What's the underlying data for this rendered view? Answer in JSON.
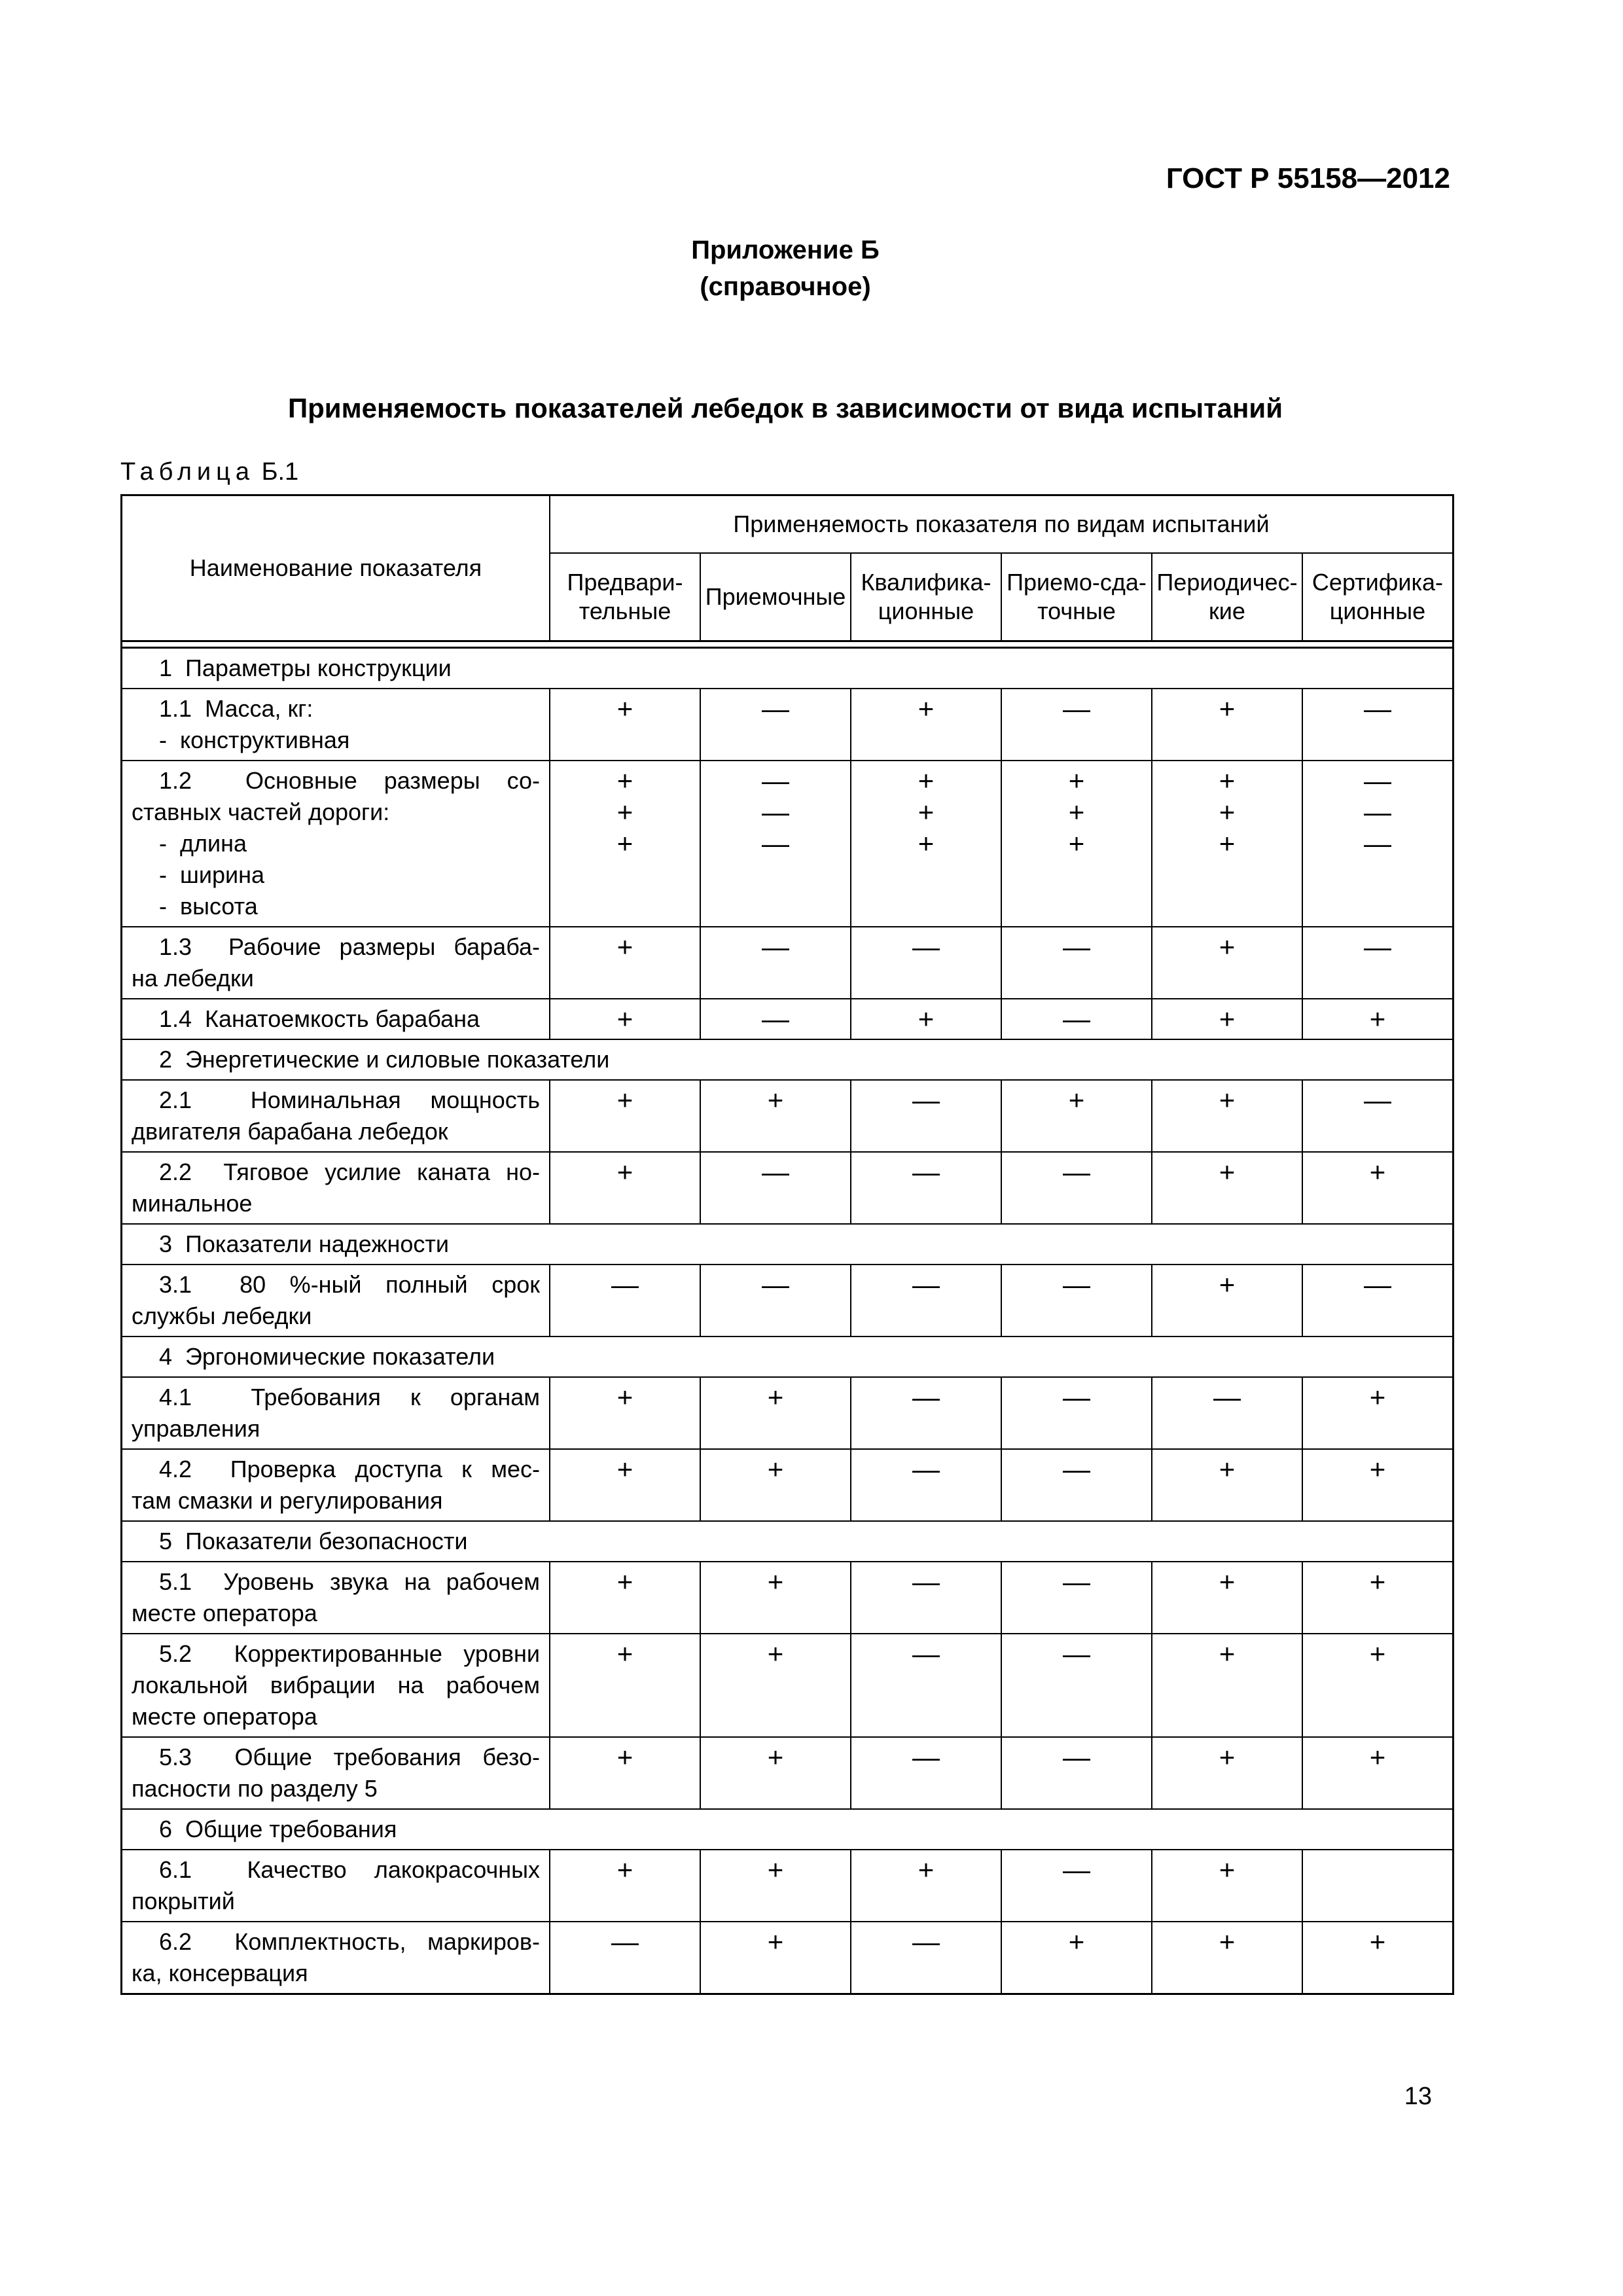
{
  "page": {
    "doc_code": "ГОСТ Р 55158—2012",
    "annex_title": "Приложение Б",
    "annex_subtitle": "(справочное)",
    "main_title": "Применяемость показателей лебедок в зависимости от вида испытаний",
    "table_caption_word": "Таблица",
    "table_caption_number": "Б.1",
    "page_number": "13"
  },
  "table": {
    "name_column_header": "Наименование показателя",
    "span_header": "Применяемость показателя по видам испытаний",
    "test_type_columns": [
      "Предвари-\nтельные",
      "Приемочные",
      "Квалифика-\nционные",
      "Приемо-сда-\nточные",
      "Периодичес-\nкие",
      "Сертифика-\nционные"
    ],
    "mark_yes": "+",
    "mark_no": "—",
    "rows": [
      {
        "type": "section",
        "text": "1  Параметры конструкции"
      },
      {
        "type": "data",
        "lines": [
          {
            "text": "1.1  Масса, кг:"
          },
          {
            "text": "-  конструктивная",
            "marks": [
              "+",
              "—",
              "+",
              "—",
              "+",
              "—"
            ]
          }
        ]
      },
      {
        "type": "data",
        "lines": [
          {
            "text": "1.2  Основные размеры со-"
          },
          {
            "text": "ставных частей дороги:"
          },
          {
            "text": "-  длина",
            "marks": [
              "+",
              "—",
              "+",
              "+",
              "+",
              "—"
            ]
          },
          {
            "text": "-  ширина",
            "marks": [
              "+",
              "—",
              "+",
              "+",
              "+",
              "—"
            ]
          },
          {
            "text": "-  высота",
            "marks": [
              "+",
              "—",
              "+",
              "+",
              "+",
              "—"
            ]
          }
        ]
      },
      {
        "type": "data",
        "lines": [
          {
            "text": "1.3  Рабочие размеры бараба-",
            "marks": [
              "+",
              "—",
              "—",
              "—",
              "+",
              "—"
            ]
          },
          {
            "text": "на лебедки"
          }
        ]
      },
      {
        "type": "data",
        "lines": [
          {
            "text": "1.4  Канатоемкость барабана",
            "marks": [
              "+",
              "—",
              "+",
              "—",
              "+",
              "+"
            ]
          }
        ]
      },
      {
        "type": "section",
        "text": "2  Энергетические и силовые показатели"
      },
      {
        "type": "data",
        "lines": [
          {
            "text": "2.1  Номинальная мощность",
            "marks": [
              "+",
              "+",
              "—",
              "+",
              "+",
              "—"
            ]
          },
          {
            "text": "двигателя барабана лебедок"
          }
        ]
      },
      {
        "type": "data",
        "lines": [
          {
            "text": "2.2  Тяговое усилие каната но-",
            "marks": [
              "+",
              "—",
              "—",
              "—",
              "+",
              "+"
            ]
          },
          {
            "text": "минальное"
          }
        ]
      },
      {
        "type": "section",
        "text": "3  Показатели надежности"
      },
      {
        "type": "data",
        "lines": [
          {
            "text": "3.1  80 %-ный полный срок"
          },
          {
            "text": "службы лебедки",
            "marks": [
              "—",
              "—",
              "—",
              "—",
              "+",
              "—"
            ]
          }
        ]
      },
      {
        "type": "section",
        "text": "4  Эргономические показатели"
      },
      {
        "type": "data",
        "lines": [
          {
            "text": "4.1  Требования к органам",
            "marks": [
              "+",
              "+",
              "—",
              "—",
              "—",
              "+"
            ]
          },
          {
            "text": "управления"
          }
        ]
      },
      {
        "type": "data",
        "lines": [
          {
            "text": "4.2  Проверка доступа к мес-",
            "marks": [
              "+",
              "+",
              "—",
              "—",
              "+",
              "+"
            ]
          },
          {
            "text": "там смазки и регулирования"
          }
        ]
      },
      {
        "type": "section",
        "text": "5  Показатели безопасности"
      },
      {
        "type": "data",
        "lines": [
          {
            "text": "5.1  Уровень звука на рабочем",
            "marks": [
              "+",
              "+",
              "—",
              "—",
              "+",
              "+"
            ]
          },
          {
            "text": "месте оператора"
          }
        ]
      },
      {
        "type": "data",
        "lines": [
          {
            "text": "5.2  Корректированные уровни",
            "marks": [
              "+",
              "+",
              "—",
              "—",
              "+",
              "+"
            ]
          },
          {
            "text": "локальной вибрации на рабочем"
          },
          {
            "text": "месте оператора"
          }
        ]
      },
      {
        "type": "data",
        "lines": [
          {
            "text": "5.3  Общие требования безо-",
            "marks": [
              "+",
              "+",
              "—",
              "—",
              "+",
              "+"
            ]
          },
          {
            "text": "пасности по разделу 5"
          }
        ]
      },
      {
        "type": "section",
        "text": "6  Общие требования"
      },
      {
        "type": "data",
        "lines": [
          {
            "text": "6.1  Качество лакокрасочных",
            "marks": [
              "+",
              "+",
              "+",
              "—",
              "+",
              ""
            ]
          },
          {
            "text": "покрытий"
          }
        ]
      },
      {
        "type": "data",
        "lines": [
          {
            "text": "6.2  Комплектность, маркиров-",
            "marks": [
              "—",
              "+",
              "—",
              "+",
              "+",
              "+"
            ]
          },
          {
            "text": "ка, консервация"
          }
        ]
      }
    ]
  }
}
